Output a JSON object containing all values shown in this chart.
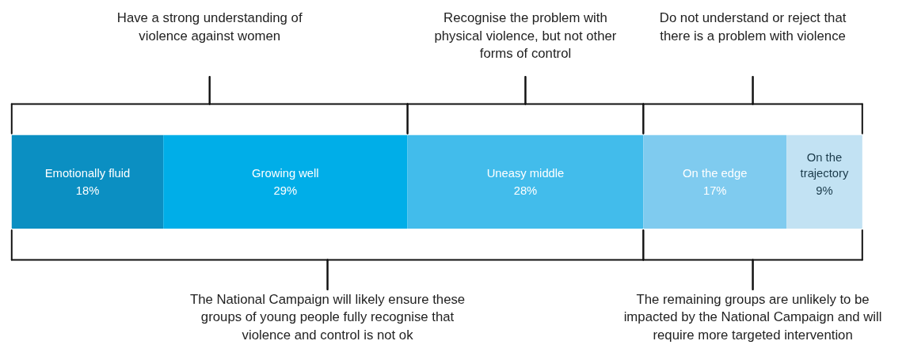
{
  "chart_data": {
    "type": "bar",
    "orientation": "horizontal",
    "stacked": true,
    "series": [
      {
        "name": "Emotionally fluid",
        "color": "#0b8fc2",
        "values": [
          18
        ],
        "value_labels": [
          "18%"
        ]
      },
      {
        "name": "Growing well",
        "color": "#00aee8",
        "values": [
          29
        ],
        "value_labels": [
          "29%"
        ]
      },
      {
        "name": "Uneasy middle",
        "color": "#42bceb",
        "values": [
          28
        ],
        "value_labels": [
          "28%"
        ]
      },
      {
        "name": "On the edge",
        "color": "#7fcbef",
        "values": [
          17
        ],
        "value_labels": [
          "17%"
        ]
      },
      {
        "name": "On the trajectory",
        "color": "#c2e2f3",
        "values": [
          9
        ],
        "value_labels": [
          "9%"
        ]
      }
    ],
    "categories": [
      null
    ],
    "legend": false,
    "annotations": [
      "Have a strong understanding of violence against women",
      "Recognise the problem with physical violence, but not other forms of control",
      "Do not understand or reject that there is a problem with violence",
      "The National Campaign will likely ensure these groups of young people fully recognise that violence and control is not ok",
      "The remaining groups are unlikely to be impacted by the National Campaign and will require more targeted intervention"
    ]
  }
}
